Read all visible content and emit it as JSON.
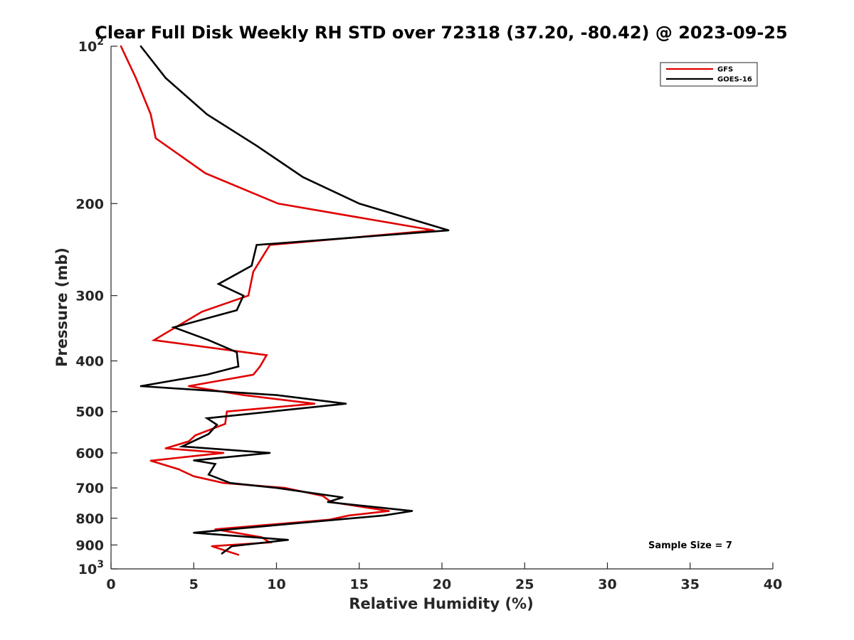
{
  "chart_data": {
    "type": "line",
    "title": "Clear Full Disk Weekly RH STD over 72318 (37.20, -80.42) @ 2023-09-25",
    "xlabel": "Relative Humidity (%)",
    "ylabel": "Pressure (mb)",
    "xlim": [
      0,
      40
    ],
    "ylim": [
      100,
      1000
    ],
    "yscale": "log",
    "y_reversed": true,
    "grid": false,
    "x_ticks": [
      "0",
      "5",
      "10",
      "15",
      "20",
      "25",
      "30",
      "35",
      "40"
    ],
    "y_ticks": [
      {
        "value": 100,
        "base": "10",
        "exp": "2"
      },
      {
        "value": 200,
        "label": "200"
      },
      {
        "value": 300,
        "label": "300"
      },
      {
        "value": 400,
        "label": "400"
      },
      {
        "value": 500,
        "label": "500"
      },
      {
        "value": 600,
        "label": "600"
      },
      {
        "value": 700,
        "label": "700"
      },
      {
        "value": 800,
        "label": "800"
      },
      {
        "value": 900,
        "label": "900"
      },
      {
        "value": 1000,
        "base": "10",
        "exp": "3"
      }
    ],
    "legend_position": "top-right",
    "annotation": "Sample Size = 7",
    "series": [
      {
        "name": "GFS",
        "color": "#e00000",
        "points": [
          {
            "x": 0.6,
            "y": 100
          },
          {
            "x": 1.5,
            "y": 115
          },
          {
            "x": 2.4,
            "y": 135
          },
          {
            "x": 2.7,
            "y": 150
          },
          {
            "x": 5.7,
            "y": 175
          },
          {
            "x": 10.1,
            "y": 200
          },
          {
            "x": 19.5,
            "y": 225
          },
          {
            "x": 9.6,
            "y": 240
          },
          {
            "x": 8.6,
            "y": 270
          },
          {
            "x": 8.3,
            "y": 300
          },
          {
            "x": 5.5,
            "y": 322
          },
          {
            "x": 2.6,
            "y": 365
          },
          {
            "x": 9.4,
            "y": 390
          },
          {
            "x": 9.0,
            "y": 410
          },
          {
            "x": 8.6,
            "y": 425
          },
          {
            "x": 4.7,
            "y": 447
          },
          {
            "x": 8.0,
            "y": 465
          },
          {
            "x": 12.3,
            "y": 483
          },
          {
            "x": 7.0,
            "y": 500
          },
          {
            "x": 6.9,
            "y": 528
          },
          {
            "x": 5.1,
            "y": 555
          },
          {
            "x": 4.7,
            "y": 570
          },
          {
            "x": 3.3,
            "y": 588
          },
          {
            "x": 6.8,
            "y": 600
          },
          {
            "x": 2.4,
            "y": 621
          },
          {
            "x": 4.1,
            "y": 645
          },
          {
            "x": 5.0,
            "y": 665
          },
          {
            "x": 6.8,
            "y": 685
          },
          {
            "x": 10.5,
            "y": 700
          },
          {
            "x": 12.8,
            "y": 725
          },
          {
            "x": 13.3,
            "y": 745
          },
          {
            "x": 16.8,
            "y": 775
          },
          {
            "x": 14.4,
            "y": 790
          },
          {
            "x": 13.2,
            "y": 805
          },
          {
            "x": 6.3,
            "y": 840
          },
          {
            "x": 9.1,
            "y": 870
          },
          {
            "x": 9.6,
            "y": 890
          },
          {
            "x": 6.1,
            "y": 905
          },
          {
            "x": 7.7,
            "y": 940
          }
        ]
      },
      {
        "name": "GOES-16",
        "color": "#000000",
        "points": [
          {
            "x": 1.8,
            "y": 100
          },
          {
            "x": 3.3,
            "y": 115
          },
          {
            "x": 5.8,
            "y": 135
          },
          {
            "x": 8.8,
            "y": 155
          },
          {
            "x": 11.6,
            "y": 178
          },
          {
            "x": 15.0,
            "y": 200
          },
          {
            "x": 20.4,
            "y": 225
          },
          {
            "x": 8.8,
            "y": 240
          },
          {
            "x": 8.5,
            "y": 263
          },
          {
            "x": 6.5,
            "y": 285
          },
          {
            "x": 8.0,
            "y": 300
          },
          {
            "x": 7.6,
            "y": 320
          },
          {
            "x": 3.8,
            "y": 345
          },
          {
            "x": 5.9,
            "y": 365
          },
          {
            "x": 7.6,
            "y": 385
          },
          {
            "x": 7.7,
            "y": 410
          },
          {
            "x": 5.8,
            "y": 425
          },
          {
            "x": 1.8,
            "y": 447
          },
          {
            "x": 10.0,
            "y": 465
          },
          {
            "x": 14.2,
            "y": 483
          },
          {
            "x": 5.8,
            "y": 515
          },
          {
            "x": 6.4,
            "y": 530
          },
          {
            "x": 5.9,
            "y": 552
          },
          {
            "x": 4.3,
            "y": 583
          },
          {
            "x": 9.6,
            "y": 600
          },
          {
            "x": 5.0,
            "y": 620
          },
          {
            "x": 6.3,
            "y": 630
          },
          {
            "x": 5.9,
            "y": 660
          },
          {
            "x": 7.2,
            "y": 685
          },
          {
            "x": 10.0,
            "y": 700
          },
          {
            "x": 14.0,
            "y": 730
          },
          {
            "x": 13.1,
            "y": 745
          },
          {
            "x": 18.2,
            "y": 775
          },
          {
            "x": 16.5,
            "y": 790
          },
          {
            "x": 7.2,
            "y": 840
          },
          {
            "x": 5.0,
            "y": 853
          },
          {
            "x": 10.7,
            "y": 880
          },
          {
            "x": 7.3,
            "y": 905
          },
          {
            "x": 6.7,
            "y": 935
          }
        ]
      }
    ]
  }
}
